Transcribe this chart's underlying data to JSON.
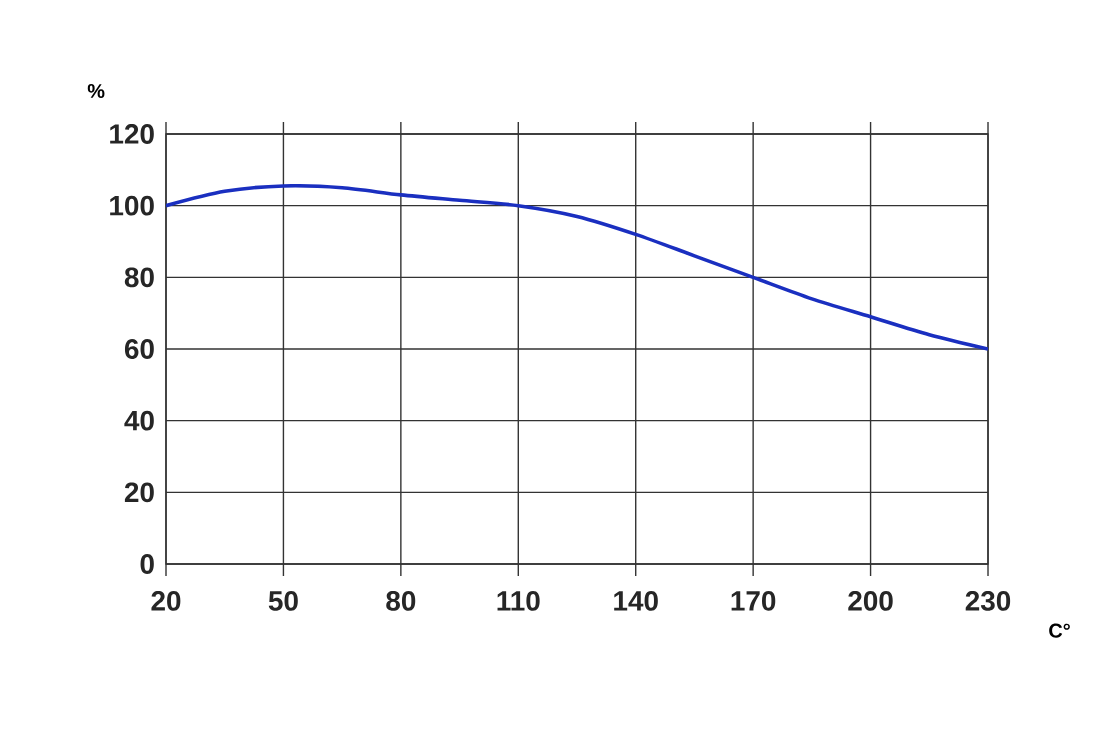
{
  "chart_data": {
    "type": "line",
    "xlabel": "C°",
    "ylabel": "%",
    "x": [
      20,
      35,
      50,
      65,
      80,
      95,
      110,
      125,
      140,
      155,
      170,
      185,
      200,
      215,
      230
    ],
    "values": [
      100,
      104,
      105.5,
      105,
      103,
      101.5,
      100,
      97,
      92,
      86,
      80,
      74,
      69,
      64,
      60
    ],
    "color": "#1a2fc0",
    "xlim": [
      20,
      230
    ],
    "ylim": [
      0,
      120
    ],
    "xticks": [
      20,
      50,
      80,
      110,
      140,
      170,
      200,
      230
    ],
    "yticks": [
      0,
      20,
      40,
      60,
      80,
      100,
      120
    ],
    "grid": true
  }
}
